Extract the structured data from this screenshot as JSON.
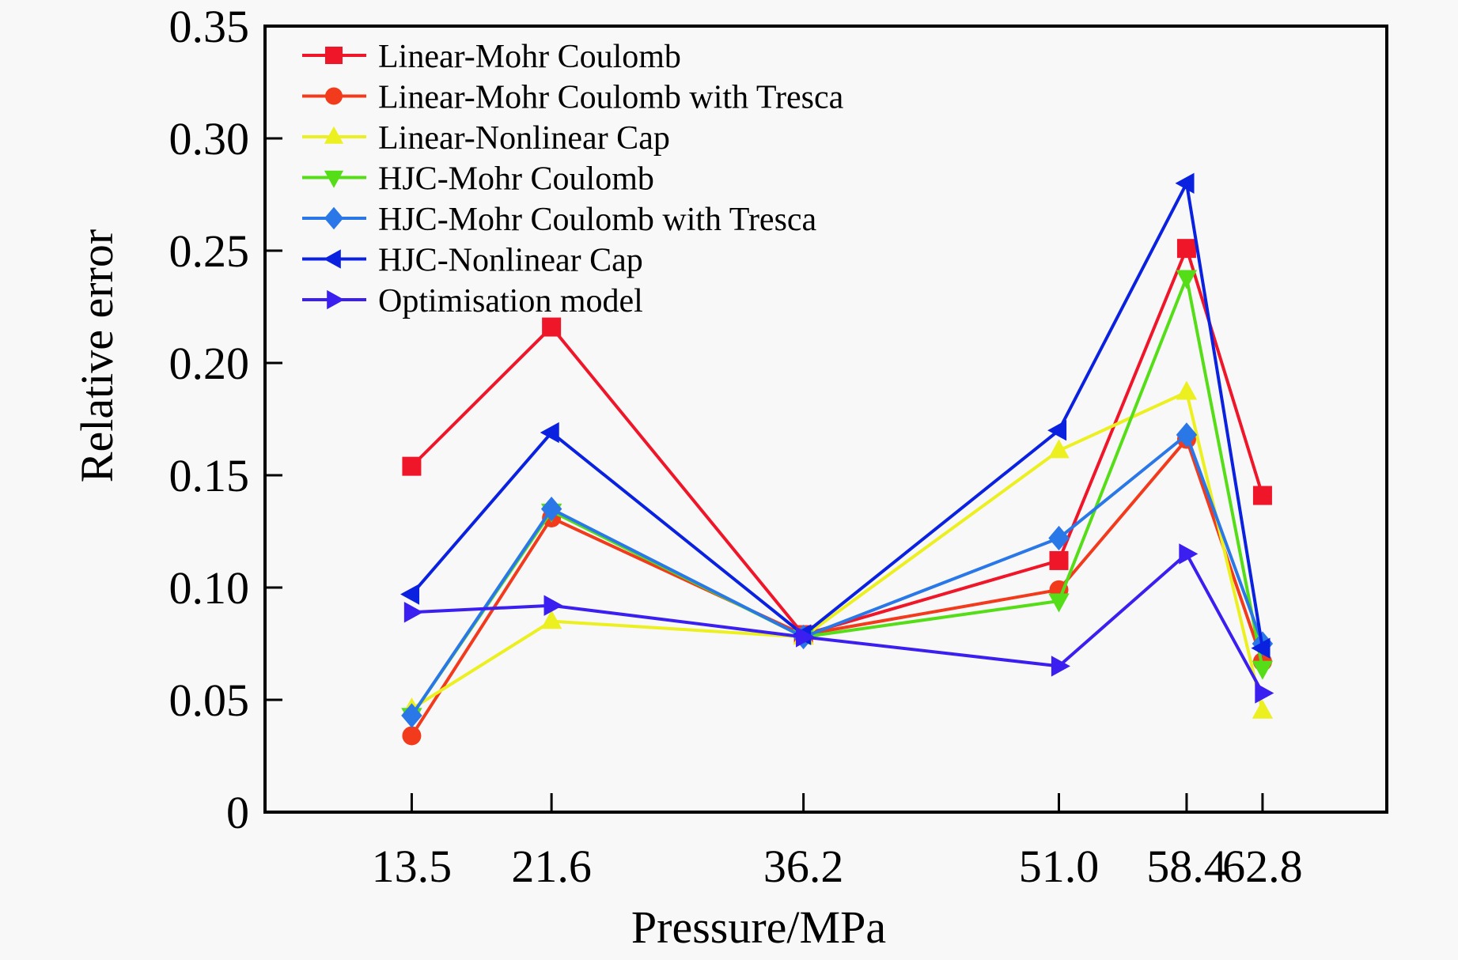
{
  "chart_data": {
    "type": "line",
    "title": "",
    "xlabel": "Pressure/MPa",
    "ylabel": "Relative error",
    "xlim": [
      5,
      70
    ],
    "ylim": [
      0,
      0.35
    ],
    "grid": false,
    "legend_position": "top-left",
    "x": [
      13.5,
      21.6,
      36.2,
      51.0,
      58.4,
      62.8
    ],
    "x_tick_labels": [
      "13.5",
      "21.6",
      "36.2",
      "51.0",
      "58.4",
      "62.8"
    ],
    "y_ticks": [
      0,
      0.05,
      0.1,
      0.15,
      0.2,
      0.25,
      0.3,
      0.35
    ],
    "y_tick_labels": [
      "0",
      "0.05",
      "0.10",
      "0.15",
      "0.20",
      "0.25",
      "0.30",
      "0.35"
    ],
    "series": [
      {
        "name": "Linear-Mohr Coulomb",
        "color": "#f0162a",
        "marker": "square",
        "values": [
          0.154,
          0.216,
          0.079,
          0.112,
          0.251,
          0.141
        ]
      },
      {
        "name": "Linear-Mohr Coulomb with Tresca",
        "color": "#f23a1c",
        "marker": "circle",
        "values": [
          0.034,
          0.131,
          0.079,
          0.099,
          0.166,
          0.067
        ]
      },
      {
        "name": "Linear-Nonlinear Cap",
        "color": "#ecf020",
        "marker": "triangle-up",
        "values": [
          0.046,
          0.085,
          0.078,
          0.161,
          0.187,
          0.045
        ]
      },
      {
        "name": "HJC-Mohr Coulomb",
        "color": "#55dd18",
        "marker": "triangle-down",
        "values": [
          0.043,
          0.134,
          0.078,
          0.094,
          0.238,
          0.064
        ]
      },
      {
        "name": "HJC-Mohr Coulomb with Tresca",
        "color": "#2a78e8",
        "marker": "diamond",
        "values": [
          0.043,
          0.135,
          0.078,
          0.122,
          0.168,
          0.075
        ]
      },
      {
        "name": "HJC-Nonlinear Cap",
        "color": "#0a22e0",
        "marker": "triangle-left",
        "values": [
          0.097,
          0.169,
          0.079,
          0.17,
          0.28,
          0.073
        ]
      },
      {
        "name": "Optimisation model",
        "color": "#3a1ff0",
        "marker": "triangle-right",
        "values": [
          0.089,
          0.092,
          0.078,
          0.065,
          0.115,
          0.053
        ]
      }
    ]
  }
}
